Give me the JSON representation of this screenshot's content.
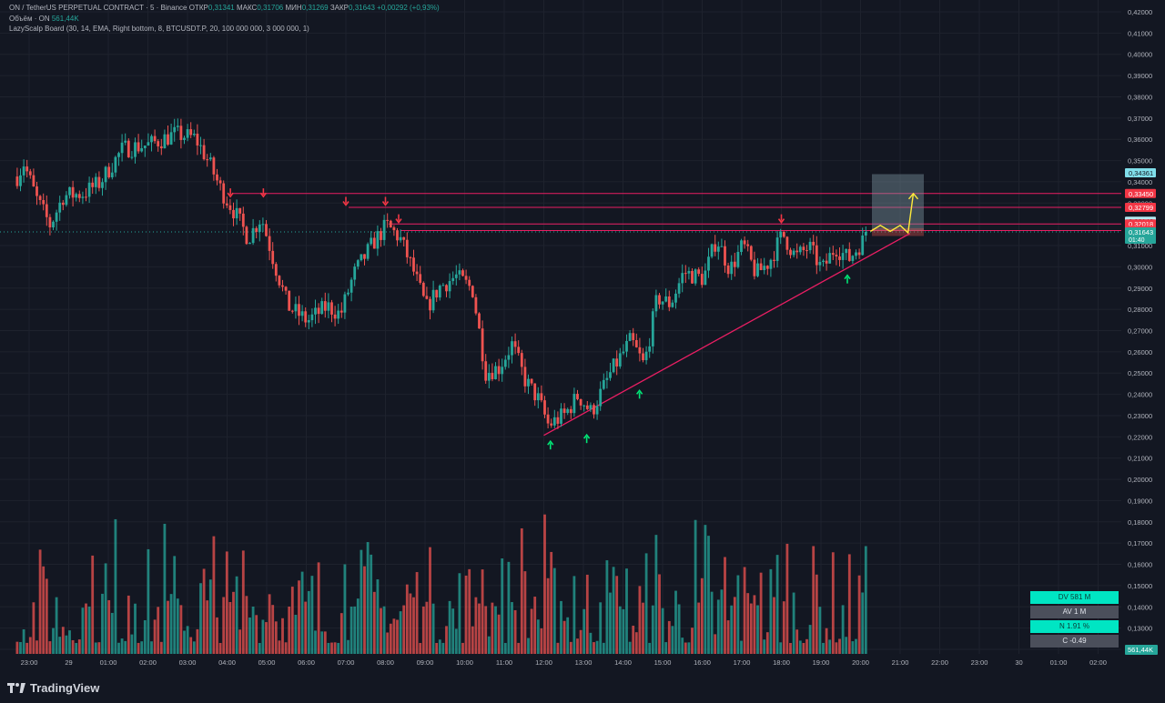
{
  "legend": {
    "symbol_line": "ON / TetherUS PERPETUAL CONTRACT · 5 · Binance",
    "open_label": "ОТКР",
    "open": "0,31341",
    "high_label": "МАКС",
    "high": "0,31706",
    "low_label": "МИН",
    "low": "0,31269",
    "close_label": "ЗАКР",
    "close": "0,31643",
    "change": "+0,00292 (+0,93%)",
    "volume_label": "Объём · ON",
    "volume": "561,44K",
    "indicator": "LazyScalp Board (30, 14, EMA, Right bottom, 8, BTCUSDT.P, 20, 100 000 000, 3 000 000, 1)"
  },
  "price_axis": {
    "ticks": [
      "0,42000",
      "0,41000",
      "0,40000",
      "0,39000",
      "0,38000",
      "0,37000",
      "0,36000",
      "0,35000",
      "0,34000",
      "0,33000",
      "0,32000",
      "0,31000",
      "0,30000",
      "0,29000",
      "0,28000",
      "0,27000",
      "0,26000",
      "0,25000",
      "0,24000",
      "0,23000",
      "0,22000",
      "0,21000",
      "0,20000",
      "0,19000",
      "0,18000",
      "0,17000",
      "0,16000",
      "0,15000",
      "0,14000",
      "0,13000",
      "0,12000"
    ],
    "tags": [
      {
        "value": 0.34361,
        "label": "0,34361",
        "color": "#80deea"
      },
      {
        "value": 0.3345,
        "label": "0,33450",
        "color": "#f23645"
      },
      {
        "value": 0.32799,
        "label": "0,32799",
        "color": "#f23645"
      },
      {
        "value": 0.32148,
        "label": "0,32148",
        "color": "#b2ebf2"
      },
      {
        "value": 0.32018,
        "label": "0,32018",
        "color": "#f23645"
      },
      {
        "value": 0.31706,
        "label": "0,31706",
        "color": "#f23645"
      },
      {
        "value": 0.31643,
        "label": "0,31643",
        "sub": "01:40",
        "color": "#26a69a"
      }
    ],
    "volume_tag": "561,44K"
  },
  "time_axis": {
    "labels": [
      "23:00",
      "29",
      "01:00",
      "02:00",
      "03:00",
      "04:00",
      "05:00",
      "06:00",
      "07:00",
      "08:00",
      "09:00",
      "10:00",
      "11:00",
      "12:00",
      "13:00",
      "14:00",
      "15:00",
      "16:00",
      "17:00",
      "18:00",
      "19:00",
      "20:00",
      "21:00",
      "22:00",
      "23:00",
      "30",
      "01:00",
      "02:00"
    ]
  },
  "stats": [
    {
      "text": "DV 581 M",
      "style": "teal"
    },
    {
      "text": "AV 1 M",
      "style": "gray"
    },
    {
      "text": "N 1.91 %",
      "style": "teal"
    },
    {
      "text": "C  -0.49",
      "style": "gray"
    }
  ],
  "brand": "TradingView",
  "chart_data": {
    "type": "candlestick",
    "interval": "5",
    "ylim": [
      0.115,
      0.425
    ],
    "current_price": 0.31643,
    "horizontal_levels": [
      0.3345,
      0.32799,
      0.32018,
      0.31706
    ],
    "trendline": {
      "from": {
        "time": "12:00",
        "price": 0.2207
      },
      "to": {
        "time": "21:15",
        "price": 0.3157
      }
    },
    "markers_down": [
      {
        "time": "04:05",
        "price": 0.3335
      },
      {
        "time": "04:55",
        "price": 0.3335
      },
      {
        "time": "07:00",
        "price": 0.3295
      },
      {
        "time": "08:00",
        "price": 0.3295
      },
      {
        "time": "08:20",
        "price": 0.3213
      },
      {
        "time": "18:00",
        "price": 0.3213
      }
    ],
    "markers_up": [
      {
        "time": "12:10",
        "price": 0.2175
      },
      {
        "time": "13:05",
        "price": 0.2205
      },
      {
        "time": "14:25",
        "price": 0.2414
      },
      {
        "time": "19:40",
        "price": 0.2956
      }
    ],
    "projection": [
      {
        "time": "20:15",
        "price": 0.3167
      },
      {
        "time": "20:30",
        "price": 0.3195
      },
      {
        "time": "20:45",
        "price": 0.3167
      },
      {
        "time": "21:00",
        "price": 0.3195
      },
      {
        "time": "21:12",
        "price": 0.316
      },
      {
        "time": "21:20",
        "price": 0.3345
      }
    ],
    "target_box": {
      "price_top": 0.34361,
      "price_bottom": 0.317
    },
    "anchors": [
      {
        "time": "22:40",
        "price": 0.3425
      },
      {
        "time": "22:50",
        "price": 0.3488
      },
      {
        "time": "23:10",
        "price": 0.3315
      },
      {
        "time": "23:30",
        "price": 0.3195
      },
      {
        "time": "23:50",
        "price": 0.3335
      },
      {
        "time": "00:20",
        "price": 0.3345
      },
      {
        "time": "00:45",
        "price": 0.3395
      },
      {
        "time": "01:20",
        "price": 0.3555
      },
      {
        "time": "02:00",
        "price": 0.3575
      },
      {
        "time": "02:40",
        "price": 0.3625
      },
      {
        "time": "03:10",
        "price": 0.3605
      },
      {
        "time": "03:30",
        "price": 0.3495
      },
      {
        "time": "03:50",
        "price": 0.3355
      },
      {
        "time": "04:10",
        "price": 0.3255
      },
      {
        "time": "04:30",
        "price": 0.3135
      },
      {
        "time": "04:50",
        "price": 0.3235
      },
      {
        "time": "05:10",
        "price": 0.3015
      },
      {
        "time": "05:30",
        "price": 0.2815
      },
      {
        "time": "06:00",
        "price": 0.2745
      },
      {
        "time": "06:30",
        "price": 0.2815
      },
      {
        "time": "06:50",
        "price": 0.2775
      },
      {
        "time": "07:10",
        "price": 0.2965
      },
      {
        "time": "07:40",
        "price": 0.3115
      },
      {
        "time": "08:00",
        "price": 0.3195
      },
      {
        "time": "08:20",
        "price": 0.3135
      },
      {
        "time": "08:40",
        "price": 0.2985
      },
      {
        "time": "09:00",
        "price": 0.2805
      },
      {
        "time": "09:20",
        "price": 0.2905
      },
      {
        "time": "09:45",
        "price": 0.2955
      },
      {
        "time": "10:10",
        "price": 0.2895
      },
      {
        "time": "10:30",
        "price": 0.2505
      },
      {
        "time": "10:50",
        "price": 0.2525
      },
      {
        "time": "11:10",
        "price": 0.2635
      },
      {
        "time": "11:30",
        "price": 0.2465
      },
      {
        "time": "11:50",
        "price": 0.2375
      },
      {
        "time": "12:05",
        "price": 0.2255
      },
      {
        "time": "12:30",
        "price": 0.2305
      },
      {
        "time": "12:50",
        "price": 0.2395
      },
      {
        "time": "13:10",
        "price": 0.2315
      },
      {
        "time": "13:40",
        "price": 0.2505
      },
      {
        "time": "14:10",
        "price": 0.2655
      },
      {
        "time": "14:30",
        "price": 0.2535
      },
      {
        "time": "14:50",
        "price": 0.2855
      },
      {
        "time": "15:10",
        "price": 0.2825
      },
      {
        "time": "15:30",
        "price": 0.2975
      },
      {
        "time": "16:00",
        "price": 0.2945
      },
      {
        "time": "16:20",
        "price": 0.3135
      },
      {
        "time": "16:40",
        "price": 0.2985
      },
      {
        "time": "17:00",
        "price": 0.3105
      },
      {
        "time": "17:20",
        "price": 0.2965
      },
      {
        "time": "17:40",
        "price": 0.3025
      },
      {
        "time": "18:00",
        "price": 0.3155
      },
      {
        "time": "18:20",
        "price": 0.3045
      },
      {
        "time": "18:40",
        "price": 0.3095
      },
      {
        "time": "19:00",
        "price": 0.2985
      },
      {
        "time": "19:20",
        "price": 0.3095
      },
      {
        "time": "19:40",
        "price": 0.3035
      },
      {
        "time": "20:00",
        "price": 0.3115
      },
      {
        "time": "20:10",
        "price": 0.3164
      }
    ]
  }
}
